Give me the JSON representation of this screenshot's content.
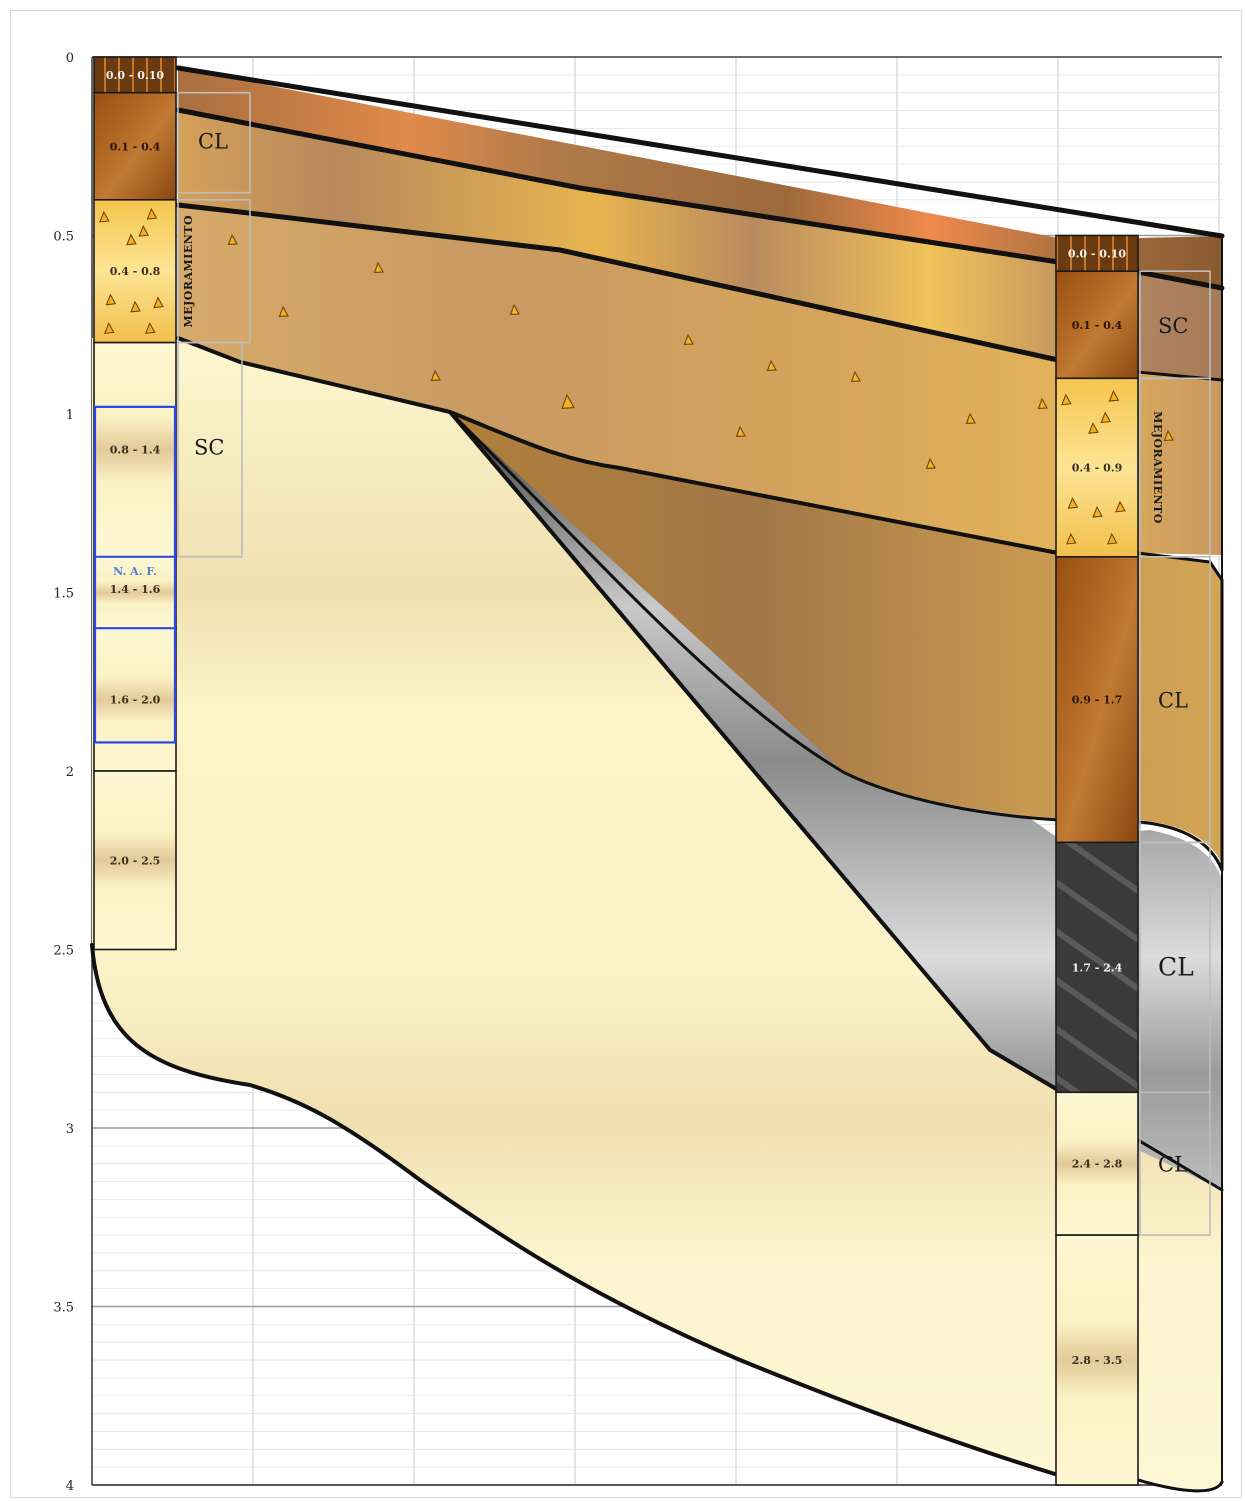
{
  "diagram": {
    "y_axis": {
      "min": 0,
      "max": 4,
      "ticks": [
        "0",
        "0.5",
        "1",
        "1.5",
        "2",
        "2.5",
        "3",
        "3.5",
        "4"
      ]
    },
    "boreholes": [
      {
        "id": "left",
        "layers": [
          {
            "range": "0.0 - 0.10",
            "top": 0.0,
            "bottom": 0.1,
            "material": "topsoil"
          },
          {
            "range": "0.1 - 0.4",
            "top": 0.1,
            "bottom": 0.4,
            "material": "brown_clay"
          },
          {
            "range": "0.4 - 0.8",
            "top": 0.4,
            "bottom": 0.8,
            "material": "gravel_fill"
          },
          {
            "range": "0.8 - 1.4",
            "top": 0.8,
            "bottom": 1.4,
            "material": "cream_sand"
          },
          {
            "range": "1.4 - 1.6",
            "top": 1.4,
            "bottom": 1.6,
            "material": "cream_sand",
            "note": "N. A. F."
          },
          {
            "range": "1.6 - 2.0",
            "top": 1.6,
            "bottom": 2.0,
            "material": "cream_sand"
          },
          {
            "range": "2.0 - 2.5",
            "top": 2.0,
            "bottom": 2.5,
            "material": "cream_sand"
          }
        ],
        "uscs_labels": [
          {
            "text": "CL",
            "top": 0.1,
            "bottom": 0.4
          },
          {
            "text": "MEJORAMIENTO",
            "top": 0.4,
            "bottom": 0.8,
            "vertical": true
          },
          {
            "text": "SC",
            "top": 0.8,
            "bottom": 1.4
          }
        ]
      },
      {
        "id": "right",
        "layers": [
          {
            "range": "0.0 - 0.10",
            "top": 0.5,
            "bottom": 0.6,
            "material": "topsoil"
          },
          {
            "range": "0.1 - 0.4",
            "top": 0.6,
            "bottom": 0.9,
            "material": "brown_clay"
          },
          {
            "range": "0.4 - 0.9",
            "top": 0.9,
            "bottom": 1.4,
            "material": "gravel_fill"
          },
          {
            "range": "0.9 - 1.7",
            "top": 1.4,
            "bottom": 2.2,
            "material": "brown_clay"
          },
          {
            "range": "1.7 - 2.4",
            "top": 2.2,
            "bottom": 2.9,
            "material": "dark_clay"
          },
          {
            "range": "2.4 - 2.8",
            "top": 2.9,
            "bottom": 3.3,
            "material": "cream_sand"
          },
          {
            "range": "2.8 - 3.5",
            "top": 3.3,
            "bottom": 4.0,
            "material": "cream_sand"
          }
        ],
        "uscs_labels": [
          {
            "text": "SC",
            "top": 0.6,
            "bottom": 0.9
          },
          {
            "text": "MEJORAMIENTO",
            "top": 0.9,
            "bottom": 1.4,
            "vertical": true
          },
          {
            "text": "CL",
            "top": 1.4,
            "bottom": 2.2
          },
          {
            "text": "CL",
            "top": 2.2,
            "bottom": 2.9,
            "big": true
          },
          {
            "text": "CL",
            "top": 2.9,
            "bottom": 3.3
          }
        ]
      }
    ],
    "colors": {
      "topsoil": "#6e3d13",
      "brown_clay": "#a0581a",
      "gravel_fill": "#f2c65a",
      "cream_sand": "#fdf6cf",
      "dark_clay": "#3d3d3d",
      "water_table": "#2a48e8"
    }
  }
}
